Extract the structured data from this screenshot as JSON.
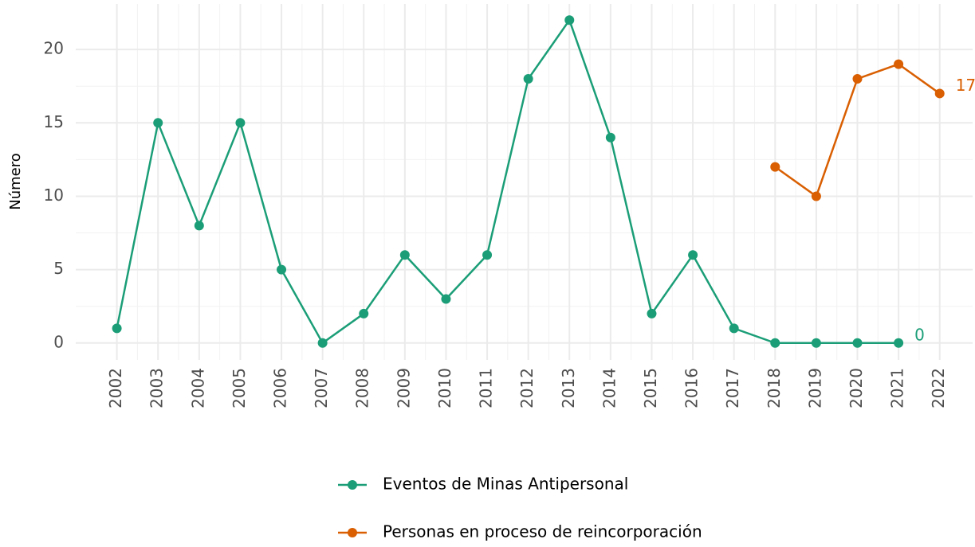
{
  "chart_data": {
    "type": "line",
    "y_label": "Número",
    "x": [
      2002,
      2003,
      2004,
      2005,
      2006,
      2007,
      2008,
      2009,
      2010,
      2011,
      2012,
      2013,
      2014,
      2015,
      2016,
      2017,
      2018,
      2019,
      2020,
      2021,
      2022
    ],
    "series": [
      {
        "name": "Eventos de Minas Antipersonal",
        "color": "#1b9e77",
        "values": [
          1,
          15,
          8,
          15,
          5,
          0,
          2,
          6,
          3,
          6,
          18,
          22,
          14,
          2,
          6,
          1,
          0,
          0,
          0,
          0,
          null
        ],
        "value_labels": [
          null,
          null,
          null,
          null,
          null,
          null,
          null,
          null,
          null,
          null,
          null,
          null,
          null,
          null,
          null,
          null,
          null,
          null,
          null,
          "0",
          null
        ]
      },
      {
        "name": "Personas en proceso de reincorporación",
        "color": "#d95f02",
        "values": [
          null,
          null,
          null,
          null,
          null,
          null,
          null,
          null,
          null,
          null,
          null,
          null,
          null,
          null,
          null,
          null,
          12,
          10,
          18,
          19,
          17
        ],
        "value_labels": [
          null,
          null,
          null,
          null,
          null,
          null,
          null,
          null,
          null,
          null,
          null,
          null,
          null,
          null,
          null,
          null,
          null,
          null,
          null,
          null,
          "17"
        ]
      }
    ],
    "xlim": [
      2001,
      2022.8
    ],
    "xticks": [
      2002,
      2003,
      2004,
      2005,
      2006,
      2007,
      2008,
      2009,
      2010,
      2011,
      2012,
      2013,
      2014,
      2015,
      2016,
      2017,
      2018,
      2019,
      2020,
      2021,
      2022
    ],
    "ylim": [
      -1.15,
      23.1
    ],
    "yticks": [
      0,
      5,
      10,
      15,
      20
    ],
    "grid": true,
    "legend": "bottom"
  }
}
